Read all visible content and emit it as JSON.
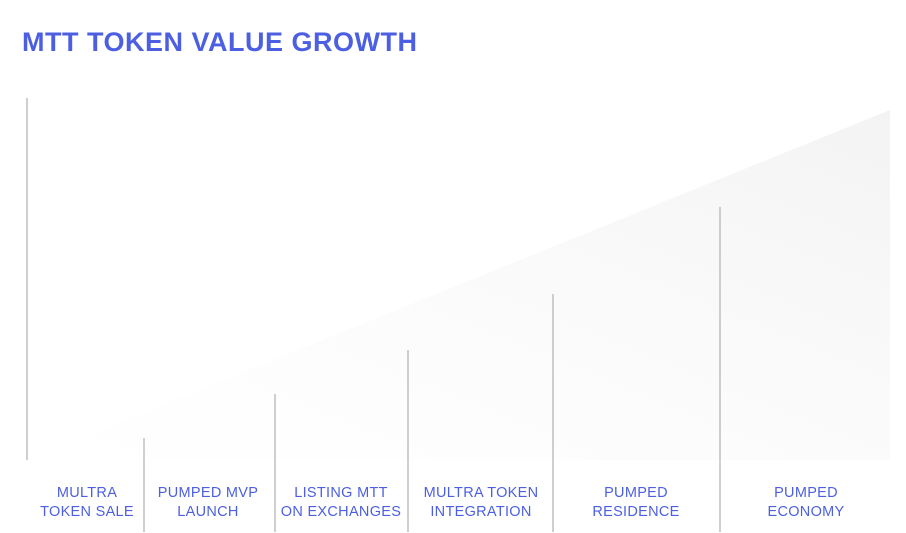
{
  "header": {
    "title": "MTT TOKEN VALUE GROWTH"
  },
  "stages": [
    {
      "lines": [
        "MULTRA",
        "TOKEN SALE"
      ]
    },
    {
      "lines": [
        "PUMPED MVP",
        "LAUNCH"
      ]
    },
    {
      "lines": [
        "LISTING MTT",
        "ON EXCHANGES"
      ]
    },
    {
      "lines": [
        "MULTRA TOKEN",
        "INTEGRATION"
      ]
    },
    {
      "lines": [
        "PUMPED",
        "RESIDENCE"
      ]
    },
    {
      "lines": [
        "PUMPED",
        "ECONOMY"
      ]
    }
  ]
}
